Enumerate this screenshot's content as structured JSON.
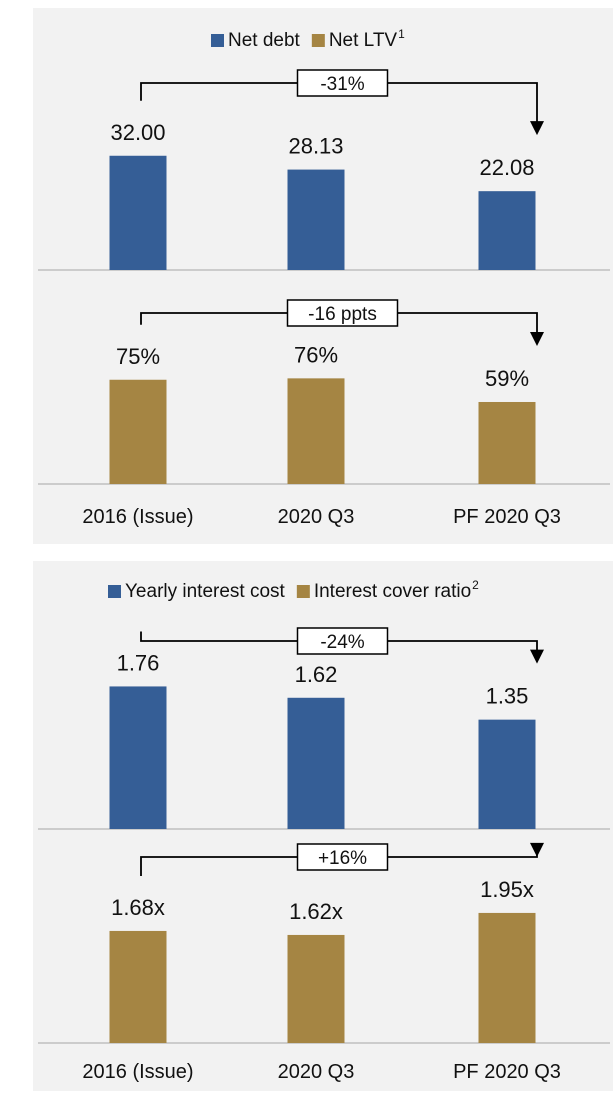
{
  "title": "",
  "colors": {
    "blue": "#355E96",
    "gold": "#A58543",
    "axis": "#BFBFBF",
    "panel_bg": "#F2F2F2"
  },
  "chart_data": [
    {
      "type": "bar",
      "panel": 1,
      "legend": [
        "Net debt",
        "Net LTV"
      ],
      "legend_superscripts": [
        "",
        "1"
      ],
      "legend_placement": "top-center",
      "categories": [
        "2016 (Issue)",
        "2020 Q3",
        "PF 2020 Q3"
      ],
      "series": [
        {
          "name": "Net debt",
          "color": "#355E96",
          "values": [
            32.0,
            28.13,
            22.08
          ],
          "labels": [
            "32.00",
            "28.13",
            "22.08"
          ],
          "change": "-31%"
        },
        {
          "name": "Net LTV",
          "color": "#A58543",
          "values": [
            75,
            76,
            59
          ],
          "labels": [
            "75%",
            "76%",
            "59%"
          ],
          "change": "-16 ppts"
        }
      ]
    },
    {
      "type": "bar",
      "panel": 2,
      "legend": [
        "Yearly interest cost",
        "Interest cover ratio"
      ],
      "legend_superscripts": [
        "",
        "2"
      ],
      "legend_placement": "top-center",
      "categories": [
        "2016 (Issue)",
        "2020 Q3",
        "PF 2020 Q3"
      ],
      "series": [
        {
          "name": "Yearly interest cost",
          "color": "#355E96",
          "values": [
            1.76,
            1.62,
            1.35
          ],
          "labels": [
            "1.76",
            "1.62",
            "1.35"
          ],
          "change": "-24%"
        },
        {
          "name": "Interest cover ratio",
          "color": "#A58543",
          "values": [
            1.68,
            1.62,
            1.95
          ],
          "labels": [
            "1.68x",
            "1.62x",
            "1.95x"
          ],
          "change": "+16%"
        }
      ]
    }
  ]
}
